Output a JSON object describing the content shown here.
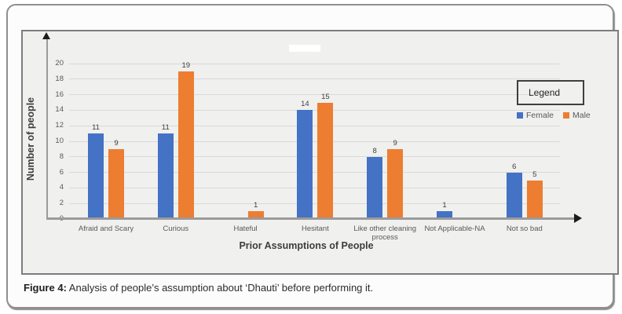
{
  "caption": {
    "prefix": "Figure 4:",
    "text": " Analysis of people’s assumption about ‘Dhauti’ before performing it."
  },
  "chart_data": {
    "type": "bar",
    "title": "",
    "categories": [
      "Afraid and Scary",
      "Curious",
      "Hateful",
      "Hesitant",
      "Like other cleaning process",
      "Not Applicable-NA",
      "Not so bad"
    ],
    "series": [
      {
        "name": "Female",
        "color": "#4472C4",
        "values": [
          11,
          11,
          0,
          14,
          8,
          1,
          6
        ]
      },
      {
        "name": "Male",
        "color": "#ED7D31",
        "values": [
          9,
          19,
          1,
          15,
          9,
          0,
          5
        ]
      }
    ],
    "xlabel": "Prior Assumptions of People",
    "ylabel": "Number of people",
    "ylim": [
      0,
      20
    ],
    "ytick_step": 2,
    "grid": true,
    "data_labels": "shown above nonzero bars",
    "legend": {
      "title": "Legend",
      "position": "inside-right"
    },
    "plot_bg": "#f0f0ef",
    "gridline_color": "#d9d9d9"
  }
}
